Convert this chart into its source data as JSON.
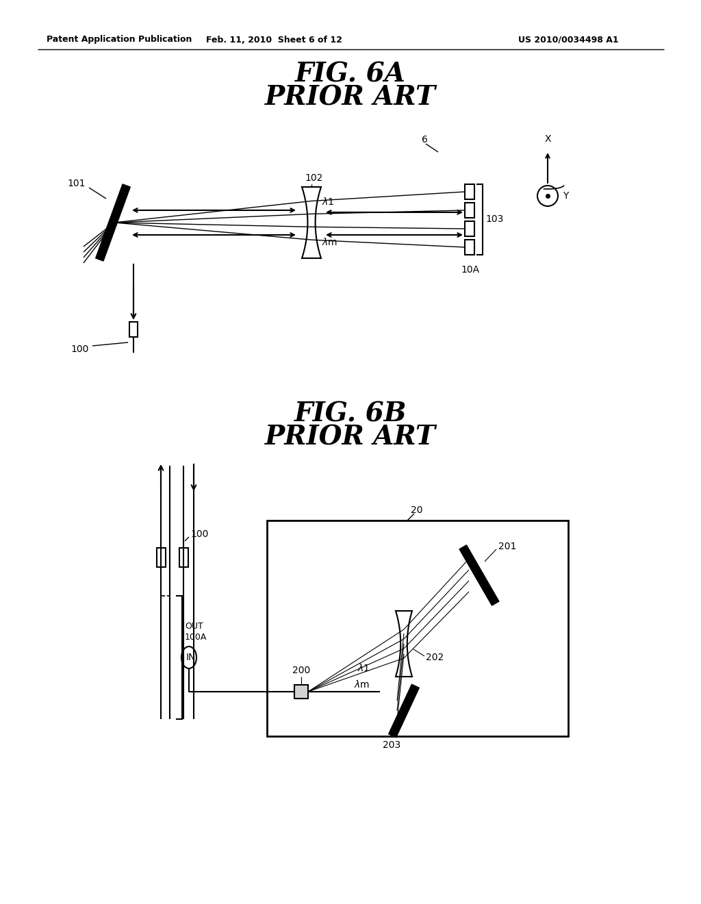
{
  "bg_color": "#ffffff",
  "header_left": "Patent Application Publication",
  "header_mid": "Feb. 11, 2010  Sheet 6 of 12",
  "header_right": "US 2010/0034498 A1",
  "fig6a_title": "FIG. 6A",
  "fig6a_subtitle": "PRIOR ART",
  "fig6b_title": "FIG. 6B",
  "fig6b_subtitle": "PRIOR ART"
}
